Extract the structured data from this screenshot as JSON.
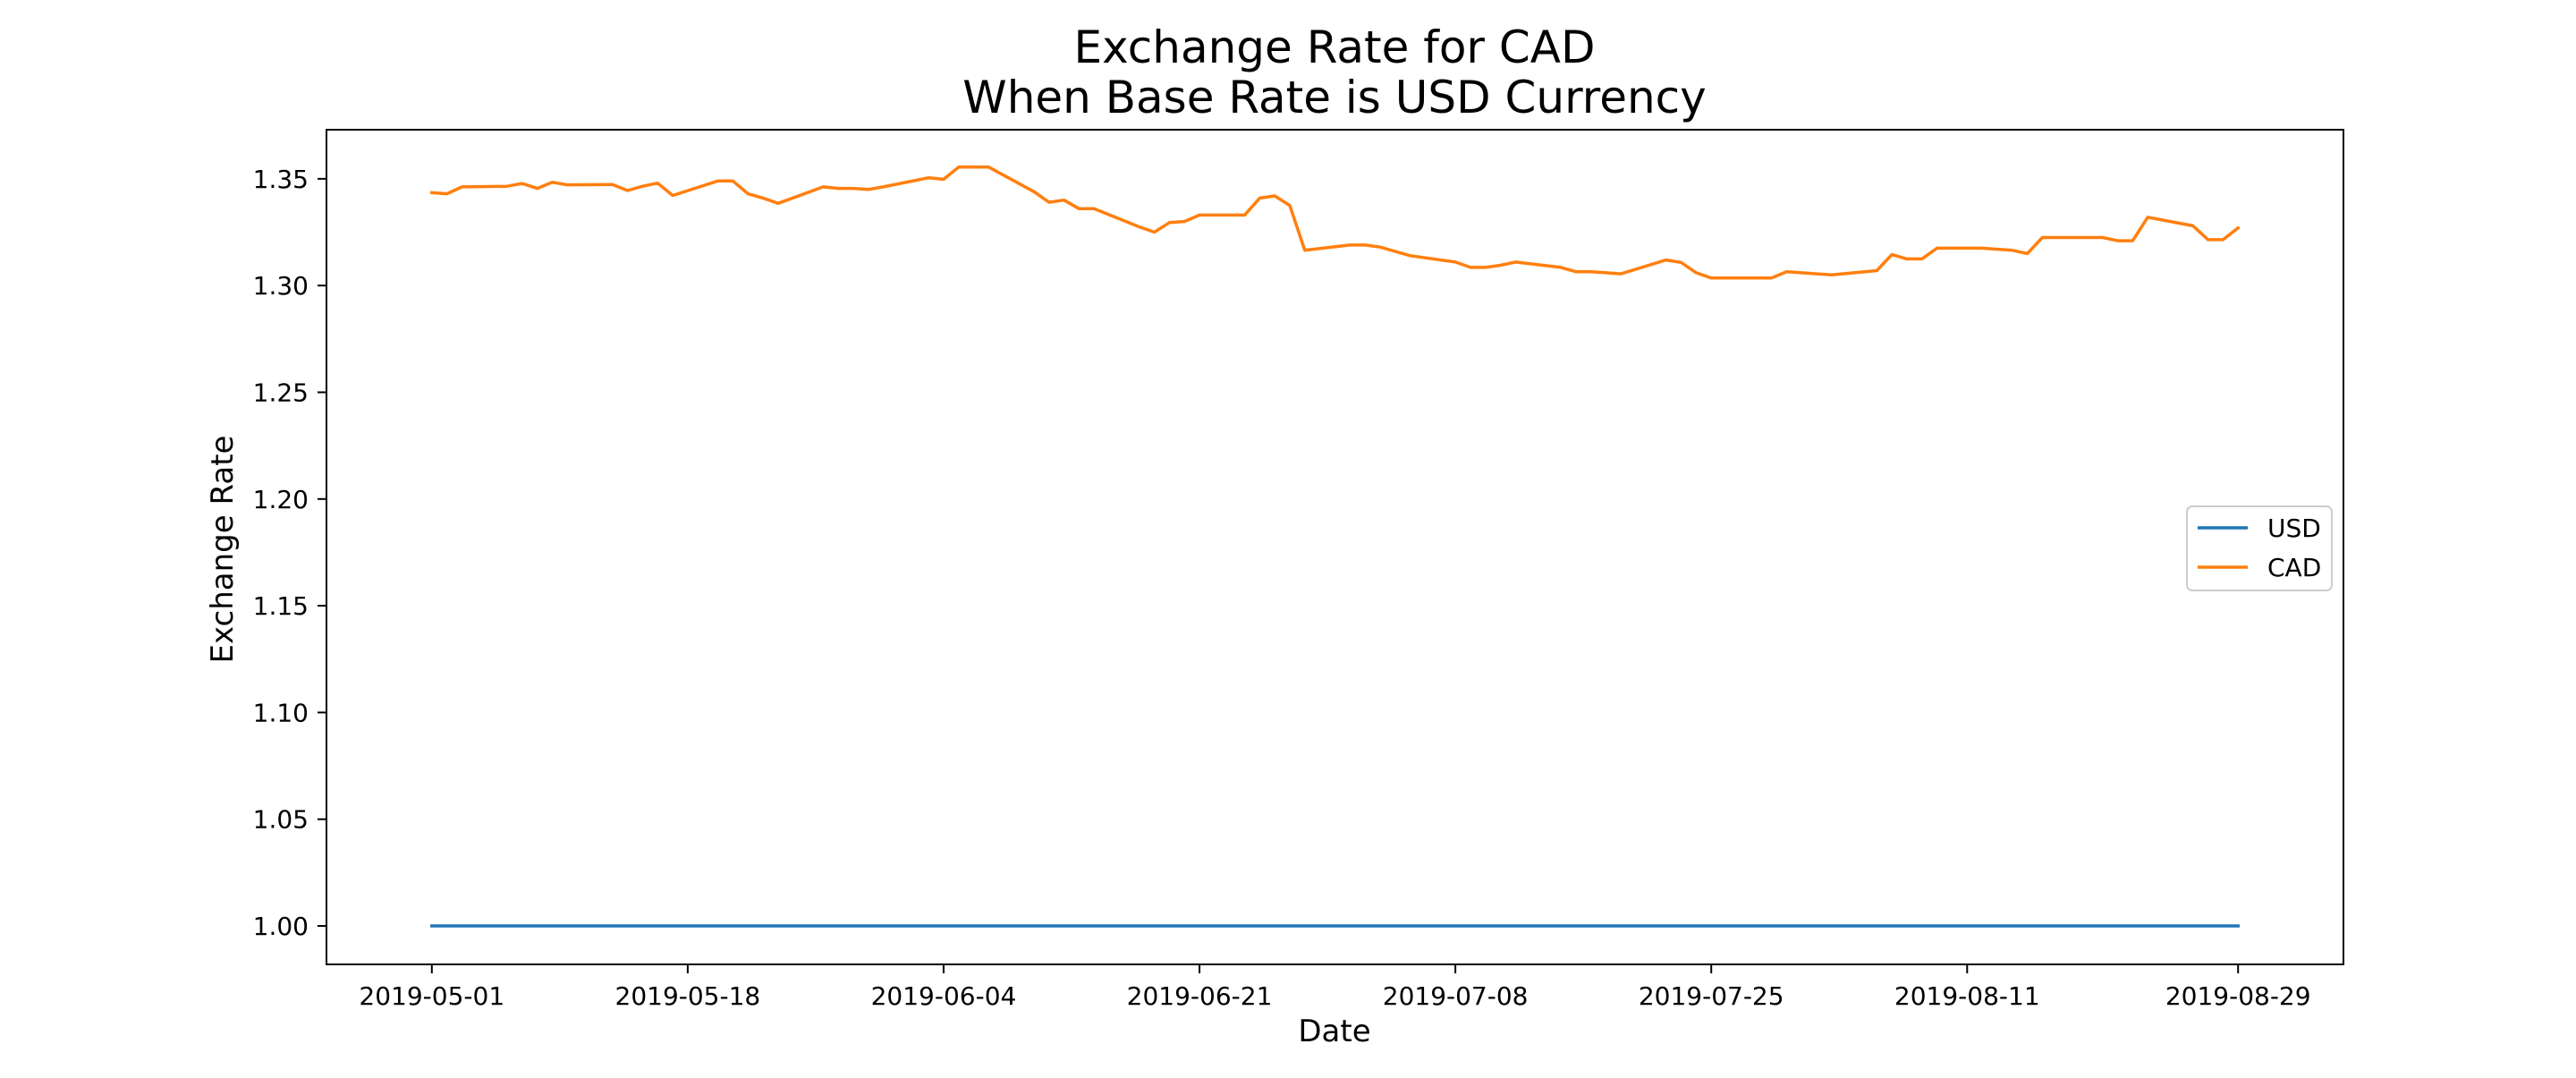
{
  "chart_data": {
    "type": "line",
    "title": "Exchange Rate for CAD",
    "subtitle": "When Base Rate is USD Currency",
    "xlabel": "Date",
    "ylabel": "Exchange Rate",
    "xlim": [
      "2019-04-24",
      "2019-09-05"
    ],
    "ylim": [
      0.982,
      1.373
    ],
    "xticks": [
      "2019-05-01",
      "2019-05-18",
      "2019-06-04",
      "2019-06-21",
      "2019-07-08",
      "2019-07-25",
      "2019-08-11",
      "2019-08-29"
    ],
    "yticks": [
      "1.00",
      "1.05",
      "1.10",
      "1.15",
      "1.20",
      "1.25",
      "1.30",
      "1.35"
    ],
    "grid": false,
    "legend": "center-right",
    "x": [
      "2019-05-01",
      "2019-05-02",
      "2019-05-03",
      "2019-05-06",
      "2019-05-07",
      "2019-05-08",
      "2019-05-09",
      "2019-05-10",
      "2019-05-13",
      "2019-05-14",
      "2019-05-15",
      "2019-05-16",
      "2019-05-17",
      "2019-05-20",
      "2019-05-21",
      "2019-05-22",
      "2019-05-23",
      "2019-05-24",
      "2019-05-27",
      "2019-05-28",
      "2019-05-29",
      "2019-05-30",
      "2019-05-31",
      "2019-06-03",
      "2019-06-04",
      "2019-06-05",
      "2019-06-06",
      "2019-06-07",
      "2019-06-10",
      "2019-06-11",
      "2019-06-12",
      "2019-06-13",
      "2019-06-14",
      "2019-06-17",
      "2019-06-18",
      "2019-06-19",
      "2019-06-20",
      "2019-06-21",
      "2019-06-24",
      "2019-06-25",
      "2019-06-26",
      "2019-06-27",
      "2019-06-28",
      "2019-07-01",
      "2019-07-02",
      "2019-07-03",
      "2019-07-04",
      "2019-07-05",
      "2019-07-08",
      "2019-07-09",
      "2019-07-10",
      "2019-07-11",
      "2019-07-12",
      "2019-07-15",
      "2019-07-16",
      "2019-07-17",
      "2019-07-18",
      "2019-07-19",
      "2019-07-22",
      "2019-07-23",
      "2019-07-24",
      "2019-07-25",
      "2019-07-26",
      "2019-07-29",
      "2019-07-30",
      "2019-07-31",
      "2019-08-01",
      "2019-08-02",
      "2019-08-05",
      "2019-08-06",
      "2019-08-07",
      "2019-08-08",
      "2019-08-09",
      "2019-08-12",
      "2019-08-13",
      "2019-08-14",
      "2019-08-15",
      "2019-08-16",
      "2019-08-19",
      "2019-08-20",
      "2019-08-21",
      "2019-08-22",
      "2019-08-23",
      "2019-08-26",
      "2019-08-27",
      "2019-08-28",
      "2019-08-29"
    ],
    "series": [
      {
        "name": "USD",
        "color": "#1f77b4",
        "values": [
          1.0,
          1.0,
          1.0,
          1.0,
          1.0,
          1.0,
          1.0,
          1.0,
          1.0,
          1.0,
          1.0,
          1.0,
          1.0,
          1.0,
          1.0,
          1.0,
          1.0,
          1.0,
          1.0,
          1.0,
          1.0,
          1.0,
          1.0,
          1.0,
          1.0,
          1.0,
          1.0,
          1.0,
          1.0,
          1.0,
          1.0,
          1.0,
          1.0,
          1.0,
          1.0,
          1.0,
          1.0,
          1.0,
          1.0,
          1.0,
          1.0,
          1.0,
          1.0,
          1.0,
          1.0,
          1.0,
          1.0,
          1.0,
          1.0,
          1.0,
          1.0,
          1.0,
          1.0,
          1.0,
          1.0,
          1.0,
          1.0,
          1.0,
          1.0,
          1.0,
          1.0,
          1.0,
          1.0,
          1.0,
          1.0,
          1.0,
          1.0,
          1.0,
          1.0,
          1.0,
          1.0,
          1.0,
          1.0,
          1.0,
          1.0,
          1.0,
          1.0,
          1.0,
          1.0,
          1.0,
          1.0,
          1.0,
          1.0,
          1.0,
          1.0,
          1.0,
          1.0
        ]
      },
      {
        "name": "CAD",
        "color": "#ff7f0e",
        "values": [
          1.3435,
          1.343,
          1.3462,
          1.3465,
          1.3478,
          1.3455,
          1.3484,
          1.3472,
          1.3473,
          1.3445,
          1.3465,
          1.348,
          1.3422,
          1.349,
          1.349,
          1.343,
          1.341,
          1.3385,
          1.3462,
          1.3455,
          1.3455,
          1.345,
          1.3462,
          1.3505,
          1.3498,
          1.3555,
          1.3555,
          1.3555,
          1.344,
          1.339,
          1.34,
          1.336,
          1.336,
          1.3275,
          1.325,
          1.3295,
          1.33,
          1.333,
          1.333,
          1.341,
          1.342,
          1.3375,
          1.3165,
          1.319,
          1.319,
          1.318,
          1.316,
          1.314,
          1.311,
          1.3085,
          1.3085,
          1.3095,
          1.311,
          1.3085,
          1.3065,
          1.3065,
          1.306,
          1.3055,
          1.312,
          1.3108,
          1.306,
          1.3035,
          1.3035,
          1.3035,
          1.3065,
          1.306,
          1.3055,
          1.305,
          1.307,
          1.3145,
          1.3125,
          1.3125,
          1.3175,
          1.3175,
          1.317,
          1.3165,
          1.315,
          1.3225,
          1.3225,
          1.3225,
          1.321,
          1.321,
          1.332,
          1.328,
          1.3215,
          1.3215,
          1.327
        ]
      }
    ]
  }
}
